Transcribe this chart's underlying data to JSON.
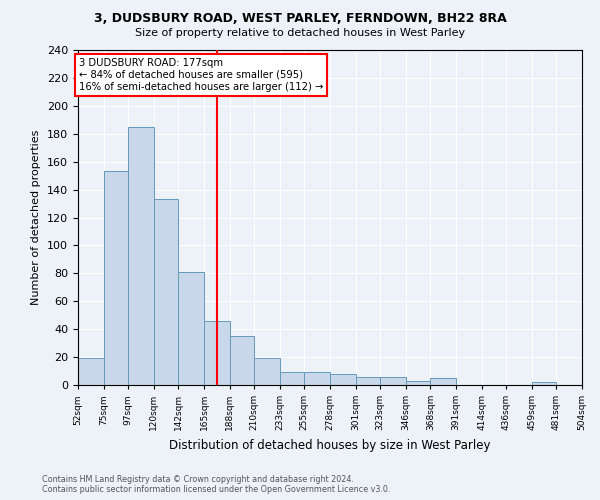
{
  "title1": "3, DUDSBURY ROAD, WEST PARLEY, FERNDOWN, BH22 8RA",
  "title2": "Size of property relative to detached houses in West Parley",
  "xlabel": "Distribution of detached houses by size in West Parley",
  "ylabel": "Number of detached properties",
  "bar_color": "#c8d8ea",
  "bar_edge_color": "#6699bb",
  "vline_x": 177,
  "vline_color": "red",
  "annotation_line1": "3 DUDSBURY ROAD: 177sqm",
  "annotation_line2": "← 84% of detached houses are smaller (595)",
  "annotation_line3": "16% of semi-detached houses are larger (112) →",
  "annotation_box_color": "white",
  "annotation_box_edge": "red",
  "bins": [
    52,
    75,
    97,
    120,
    142,
    165,
    188,
    210,
    233,
    255,
    278,
    301,
    323,
    346,
    368,
    391,
    414,
    436,
    459,
    481,
    504
  ],
  "counts": [
    19,
    153,
    185,
    133,
    81,
    46,
    35,
    19,
    9,
    9,
    8,
    6,
    6,
    3,
    5,
    0,
    0,
    0,
    2,
    0
  ],
  "ylim": [
    0,
    240
  ],
  "yticks": [
    0,
    20,
    40,
    60,
    80,
    100,
    120,
    140,
    160,
    180,
    200,
    220,
    240
  ],
  "footer1": "Contains HM Land Registry data © Crown copyright and database right 2024.",
  "footer2": "Contains public sector information licensed under the Open Government Licence v3.0.",
  "bg_color": "#edf2f8"
}
